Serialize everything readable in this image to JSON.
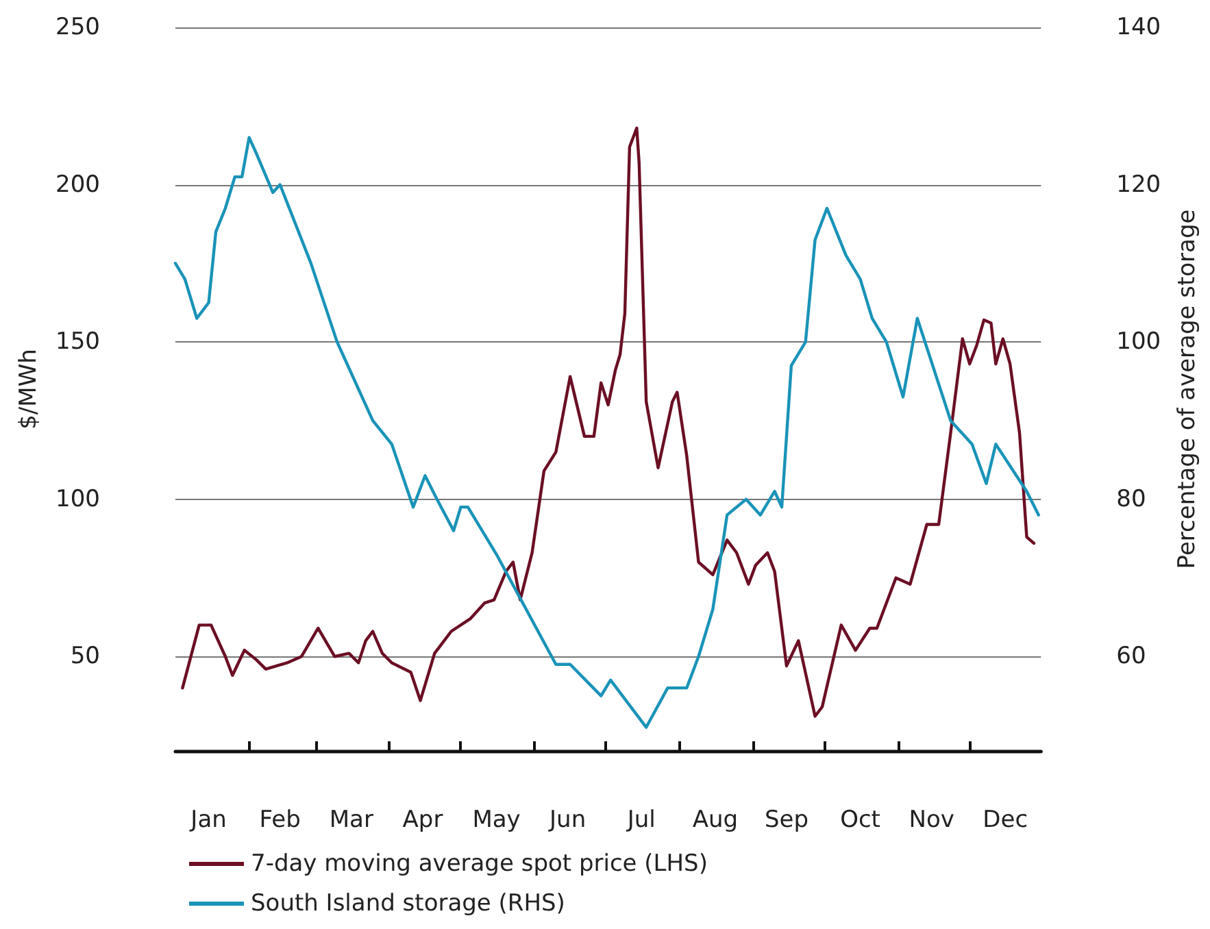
{
  "chart_data": {
    "type": "line",
    "ylabel": "$/MWh",
    "y2label": "Percentage of average storage",
    "xlim": [
      "--01-01",
      "--12-31"
    ],
    "xticks": [
      {
        "value": "--01-15",
        "label": "Jan"
      },
      {
        "value": "--02-01",
        "label": null
      },
      {
        "value": "--02-14",
        "label": "Feb"
      },
      {
        "value": "--03-01",
        "label": null
      },
      {
        "value": "--03-16",
        "label": "Mar"
      },
      {
        "value": "--04-01",
        "label": null
      },
      {
        "value": "--04-15",
        "label": "Apr"
      },
      {
        "value": "--05-01",
        "label": null
      },
      {
        "value": "--05-16",
        "label": "May"
      },
      {
        "value": "--06-01",
        "label": null
      },
      {
        "value": "--06-15",
        "label": "Jun"
      },
      {
        "value": "--07-01",
        "label": null
      },
      {
        "value": "--07-16",
        "label": "Jul"
      },
      {
        "value": "--08-01",
        "label": null
      },
      {
        "value": "--08-16",
        "label": "Aug"
      },
      {
        "value": "--09-01",
        "label": null
      },
      {
        "value": "--09-15",
        "label": "Sep"
      },
      {
        "value": "--10-01",
        "label": null
      },
      {
        "value": "--10-16",
        "label": "Oct"
      },
      {
        "value": "--11-01",
        "label": null
      },
      {
        "value": "--11-15",
        "label": "Nov"
      },
      {
        "value": "--12-01",
        "label": null
      },
      {
        "value": "--12-16",
        "label": "Dec"
      }
    ],
    "ylim": [
      20,
      250
    ],
    "yticks": [
      50,
      100,
      150,
      200,
      250
    ],
    "y2lim": [
      48,
      140
    ],
    "y2ticks": [
      60,
      80,
      100,
      120,
      140
    ],
    "grid": "y",
    "legend": "bottom left",
    "marker": "none",
    "line_style": "solid",
    "series": [
      {
        "name": "7-day moving average spot price (LHS)",
        "color": "#6b0f24",
        "x": [
          "--01-04",
          "--01-11",
          "--01-16",
          "--01-22",
          "--01-25",
          "--01-30",
          "--02-04",
          "--02-08",
          "--02-17",
          "--02-23",
          "--03-02",
          "--03-09",
          "--03-15",
          "--03-19",
          "--03-22",
          "--03-25",
          "--03-29",
          "--04-02",
          "--04-10",
          "--04-14",
          "--04-20",
          "--04-27",
          "--05-05",
          "--05-11",
          "--05-15",
          "--05-20",
          "--05-23",
          "--05-26",
          "--05-31",
          "--06-05",
          "--06-10",
          "--06-16",
          "--06-22",
          "--06-26",
          "--06-29",
          "--07-02",
          "--07-05",
          "--07-07",
          "--07-09",
          "--07-11",
          "--07-14",
          "--07-15",
          "--07-18",
          "--07-23",
          "--07-29",
          "--07-31",
          "--08-04",
          "--08-09",
          "--08-15",
          "--08-21",
          "--08-25",
          "--08-30",
          "--09-02",
          "--09-07",
          "--09-10",
          "--09-15",
          "--09-20",
          "--09-27",
          "--09-30",
          "--10-08",
          "--10-14",
          "--10-20",
          "--10-23",
          "--10-31",
          "--11-06",
          "--11-13",
          "--11-18",
          "--11-23",
          "--11-28",
          "--12-01",
          "--12-04",
          "--12-07",
          "--12-10",
          "--12-12",
          "--12-15",
          "--12-18",
          "--12-22",
          "--12-25",
          "--12-28"
        ],
        "values": [
          40,
          60,
          60,
          50,
          44,
          52,
          49,
          46,
          48,
          50,
          59,
          50,
          51,
          48,
          55,
          58,
          51,
          48,
          45,
          36,
          51,
          58,
          62,
          67,
          68,
          77,
          80,
          68,
          83,
          109,
          115,
          139,
          120,
          120,
          137,
          130,
          141,
          146,
          159,
          212,
          218,
          207,
          131,
          110,
          131,
          134,
          114,
          80,
          76,
          87,
          83,
          73,
          79,
          83,
          77,
          47,
          55,
          31,
          34,
          60,
          52,
          59,
          59,
          75,
          73,
          92,
          92,
          121,
          151,
          143,
          149,
          157,
          156,
          143,
          151,
          143,
          121,
          88,
          86
        ]
      },
      {
        "name": "South Island storage (RHS)",
        "color": "#1a93b8",
        "axis": "y2",
        "x": [
          "--01-01",
          "--01-05",
          "--01-10",
          "--01-15",
          "--01-18",
          "--01-22",
          "--01-26",
          "--01-29",
          "--02-01",
          "--02-04",
          "--02-11",
          "--02-14",
          "--02-27",
          "--03-10",
          "--03-25",
          "--04-02",
          "--04-11",
          "--04-16",
          "--04-21",
          "--04-28",
          "--05-01",
          "--05-04",
          "--05-16",
          "--06-10",
          "--06-16",
          "--06-29",
          "--07-03",
          "--07-18",
          "--07-27",
          "--08-04",
          "--08-09",
          "--08-15",
          "--08-21",
          "--08-29",
          "--09-04",
          "--09-10",
          "--09-13",
          "--09-17",
          "--09-23",
          "--09-27",
          "--10-02",
          "--10-10",
          "--10-16",
          "--10-21",
          "--10-27",
          "--11-03",
          "--11-09",
          "--11-23",
          "--12-02",
          "--12-08",
          "--12-12",
          "--12-25",
          "--12-30"
        ],
        "values": [
          110,
          108,
          103,
          105,
          114,
          117,
          121,
          121,
          126,
          124,
          119,
          120,
          110,
          100,
          90,
          87,
          79,
          83,
          80,
          76,
          79,
          79,
          73,
          59,
          59,
          55,
          57,
          51,
          56,
          56,
          60,
          66,
          78,
          80,
          78,
          81,
          79,
          97,
          100,
          113,
          117,
          111,
          108,
          103,
          100,
          93,
          103,
          90,
          87,
          82,
          87,
          81,
          78
        ]
      }
    ]
  }
}
